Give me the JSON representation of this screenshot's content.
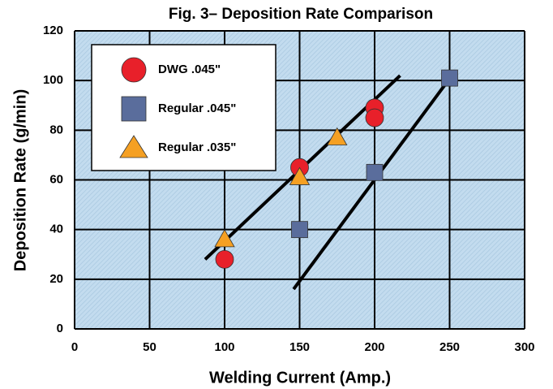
{
  "chart_data": {
    "type": "scatter",
    "title": "Fig. 3– Deposition Rate Comparison",
    "x_label": "Welding Current (Amp.)",
    "y_label": "Deposition Rate (g/min)",
    "xlim": [
      0,
      300
    ],
    "ylim": [
      0,
      120
    ],
    "xticks": [
      0,
      50,
      100,
      150,
      200,
      250,
      300
    ],
    "yticks": [
      0,
      20,
      40,
      60,
      80,
      100,
      120
    ],
    "grid": true,
    "legend": "upper left",
    "series": [
      {
        "name": "DWG .045\"",
        "color": "#e8202a",
        "marker": "circle",
        "x": [
          100,
          150,
          200,
          200
        ],
        "values": [
          28,
          65,
          89,
          85
        ]
      },
      {
        "name": "Regular .045\"",
        "color": "#5a6d9c",
        "marker": "square",
        "x": [
          150,
          200,
          250
        ],
        "values": [
          40,
          63,
          101
        ]
      },
      {
        "name": "Regular .035\"",
        "color": "#f5a023",
        "marker": "triangle",
        "x": [
          100,
          150,
          175
        ],
        "values": [
          36,
          61,
          77
        ]
      }
    ],
    "trendlines": [
      {
        "x": [
          87,
          217
        ],
        "values": [
          28,
          102
        ]
      },
      {
        "x": [
          146,
          249
        ],
        "values": [
          16,
          100
        ]
      }
    ]
  }
}
